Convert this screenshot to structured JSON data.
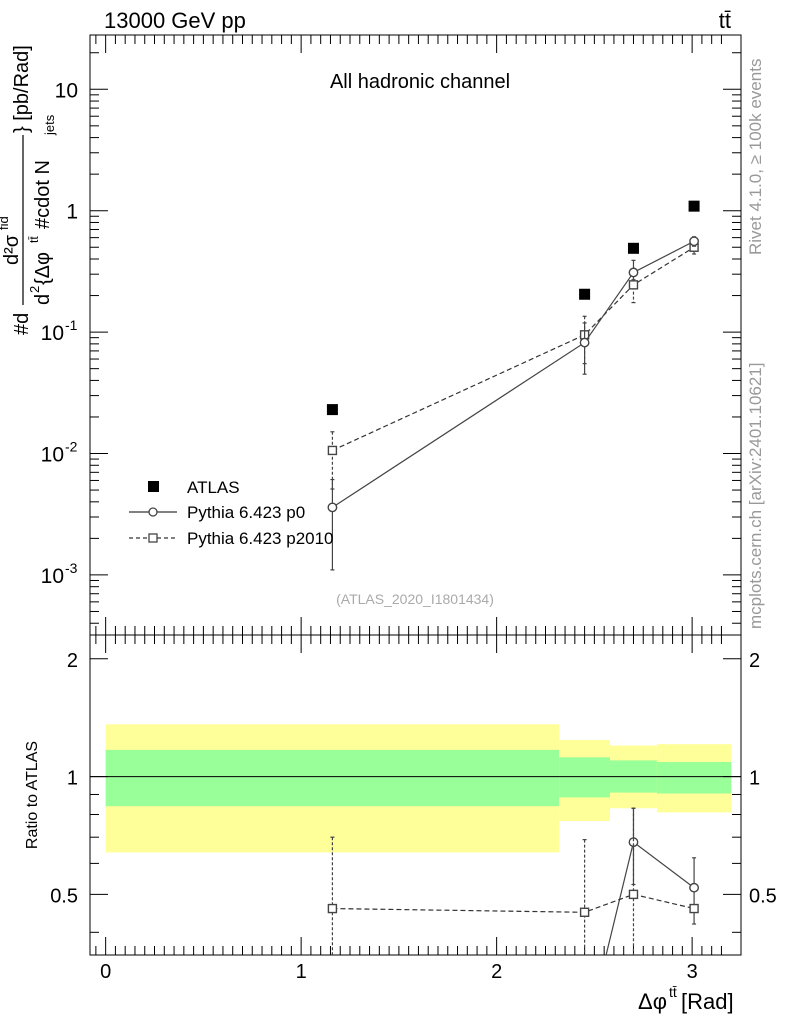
{
  "header": {
    "energy_label": "13000 GeV pp",
    "process_label": "tt̄"
  },
  "side_labels": {
    "rivet": "Rivet 4.1.0, ≥ 100k events",
    "mcplots": "mcplots.cern.ch [arXiv:2401.10621]"
  },
  "main_panel": {
    "title": "All hadronic channel",
    "watermark": "(ATLAS_2020_I1801434)",
    "ylabel": "#d d²σ^fid / d² {Δφ^tt̄ #cdot N_jets} [pb/Rad]",
    "ylabel_parts": {
      "left": "#d",
      "num": "d²σ",
      "num_sup": "fid",
      "den_a": "d",
      "den_sup": "2",
      "den_b": " {Δφ",
      "den_sup2": "tt̄",
      "den_c": " #cdot N",
      "den_sub": "jets",
      "unit": "} [pb/Rad]"
    },
    "yticks": [
      {
        "base": "10",
        "exp": "-3",
        "value": 0.001
      },
      {
        "base": "10",
        "exp": "-2",
        "value": 0.01
      },
      {
        "base": "10",
        "exp": "-1",
        "value": 0.1
      },
      {
        "base": "1",
        "exp": "",
        "value": 1
      },
      {
        "base": "10",
        "exp": "",
        "value": 10
      }
    ]
  },
  "ratio_panel": {
    "ylabel": "Ratio to ATLAS",
    "yticks": [
      "0.5",
      "1",
      "2"
    ]
  },
  "xaxis": {
    "label": "Δφ",
    "label_sup": "tt̄",
    "label_unit": " [Rad]",
    "ticks": [
      "0",
      "1",
      "2",
      "3"
    ]
  },
  "legend": {
    "entries": [
      "ATLAS",
      "Pythia 6.423 p0",
      "Pythia 6.423 p2010"
    ]
  },
  "chart_data": {
    "type": "scatter",
    "title": "All hadronic channel",
    "xlabel": "Δφ^tt̄ [Rad]",
    "ylabel": "d²σ^fid / d²{Δφ^tt̄ · N_jets} [pb/Rad]",
    "xlim": [
      -0.08,
      3.25
    ],
    "ylim": [
      0.00032,
      28
    ],
    "yscale": "log",
    "series": [
      {
        "name": "ATLAS",
        "x": [
          1.16,
          2.45,
          2.7,
          3.01
        ],
        "y": [
          0.023,
          0.205,
          0.49,
          1.09
        ],
        "band_edges": [
          0,
          2.32,
          2.58,
          2.82,
          3.2
        ],
        "band_inner": [
          [
            0.84,
            1.17
          ],
          [
            0.885,
            1.12
          ],
          [
            0.91,
            1.1
          ],
          [
            0.905,
            1.09
          ]
        ],
        "band_outer": [
          [
            0.64,
            1.36
          ],
          [
            0.77,
            1.24
          ],
          [
            0.83,
            1.2
          ],
          [
            0.81,
            1.21
          ]
        ]
      },
      {
        "name": "Pythia 6.423 p0",
        "x": [
          1.16,
          2.45,
          2.7,
          3.01
        ],
        "y": [
          0.0036,
          0.082,
          0.31,
          0.56
        ],
        "yerr_lo": [
          0.0025,
          0.037,
          0.04,
          0.05
        ],
        "yerr_hi": [
          0.0025,
          0.037,
          0.08,
          0.05
        ]
      },
      {
        "name": "Pythia 6.423 p2010",
        "x": [
          1.16,
          2.45,
          2.7,
          3.01
        ],
        "y": [
          0.0106,
          0.095,
          0.245,
          0.5
        ],
        "yerr_lo": [
          0.0055,
          0.04,
          0.07,
          0.06
        ],
        "yerr_hi": [
          0.0045,
          0.04,
          0.07,
          0.06
        ]
      }
    ],
    "ratio": {
      "ylabel": "Ratio to ATLAS",
      "ylim": [
        0.35,
        2.3
      ],
      "series": [
        {
          "name": "Pythia 6.423 p0",
          "x": [
            2.7,
            3.01
          ],
          "y": [
            0.68,
            0.52
          ],
          "yerr": [
            0.15,
            0.1
          ],
          "line_from": {
            "x": 2.56,
            "y": 0.33
          }
        },
        {
          "name": "Pythia 6.423 p2010",
          "x": [
            1.16,
            2.45,
            2.7,
            3.01
          ],
          "y": [
            0.46,
            0.45,
            0.5,
            0.46
          ],
          "yerr_hi": [
            0.24,
            0.24,
            0.33,
            0.0
          ]
        }
      ]
    }
  }
}
